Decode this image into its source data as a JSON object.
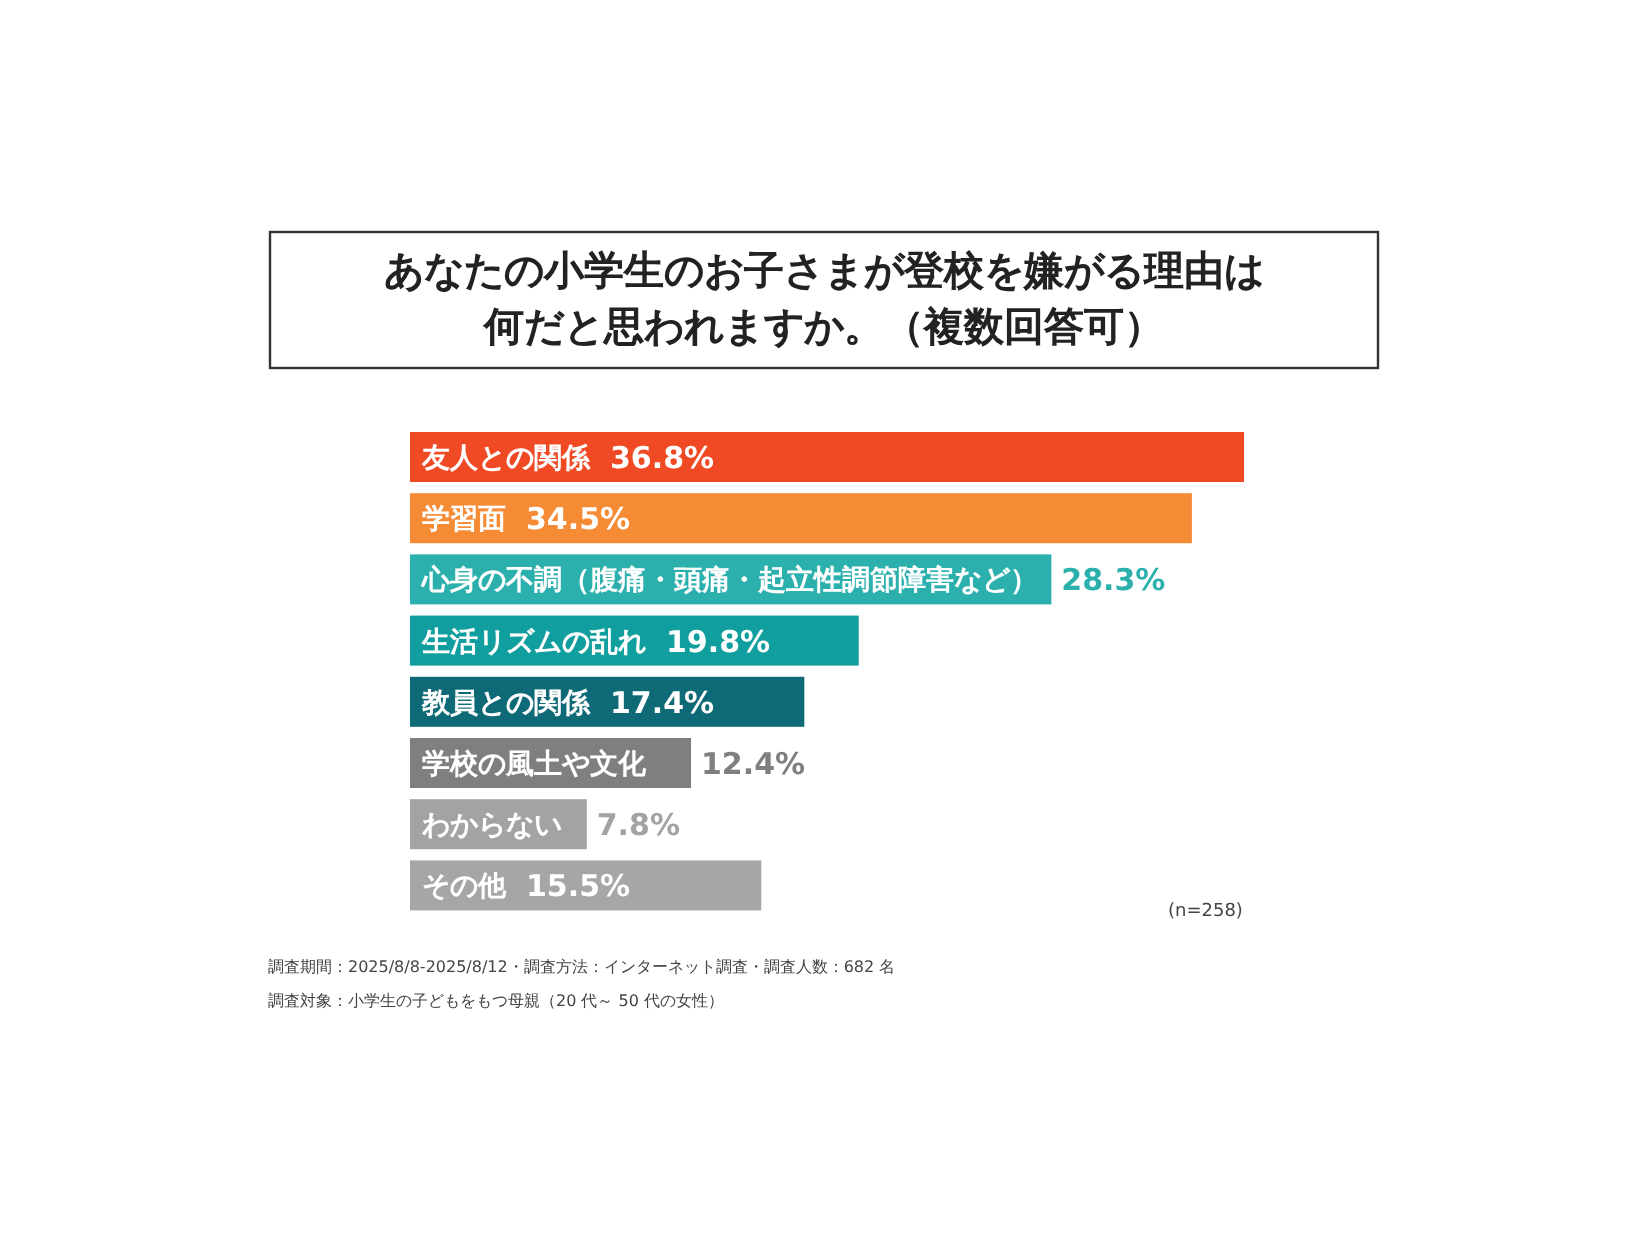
{
  "chart_data": {
    "type": "bar",
    "orientation": "horizontal",
    "title": "あなたの小学生のお子さまが登校を嫌がる理由は何だと思われますか。（複数回答可）",
    "categories": [
      "友人との関係",
      "学習面",
      "心身の不調（腹痛・頭痛・起立性調節障害など）",
      "生活リズムの乱れ",
      "教員との関係",
      "学校の風土や文化",
      "わからない",
      "その他"
    ],
    "values": [
      36.8,
      34.5,
      28.3,
      19.8,
      17.4,
      12.4,
      7.8,
      15.5
    ],
    "value_labels": [
      "36.8%",
      "34.5%",
      "28.3%",
      "19.8%",
      "17.4%",
      "12.4%",
      "7.8%",
      "15.5%"
    ],
    "colors": [
      "#f04a24",
      "#f68b36",
      "#2cb0ad",
      "#119e9e",
      "#0e6a76",
      "#7f7f7f",
      "#a3a3a3",
      "#a6a6a6"
    ],
    "annotations": [
      "(n=258)",
      "調査期間：2025/8/8-2025/8/12・調査方法：インターネット調査・調査人数：682 名",
      "調査対象：小学生の子どもをもつ母親（20 代～ 50 代の女性）"
    ]
  }
}
